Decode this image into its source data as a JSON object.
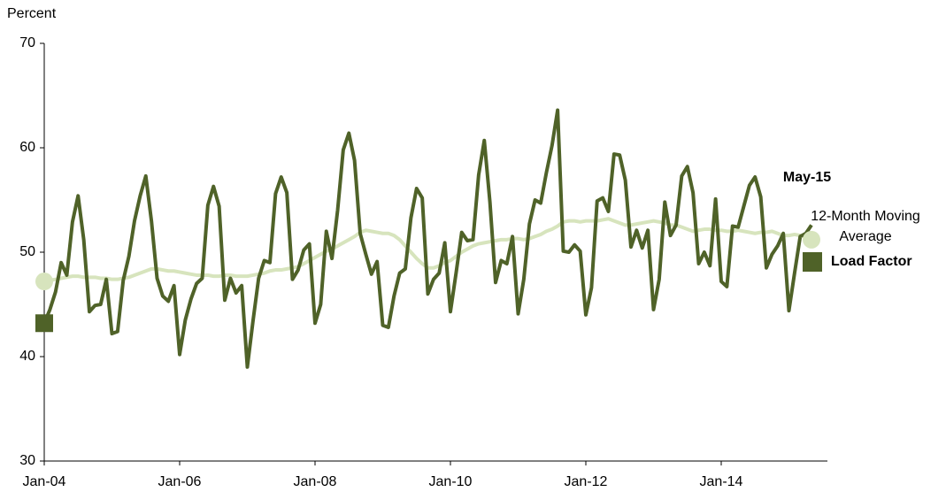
{
  "chart_data": {
    "type": "line",
    "y_label": "Percent",
    "annotation": "May-15",
    "categories": [
      "Jan-04",
      null,
      null,
      null,
      null,
      null,
      null,
      null,
      null,
      null,
      null,
      null,
      null,
      null,
      null,
      null,
      null,
      null,
      null,
      null,
      null,
      null,
      null,
      null,
      "Jan-06",
      null,
      null,
      null,
      null,
      null,
      null,
      null,
      null,
      null,
      null,
      null,
      null,
      null,
      null,
      null,
      null,
      null,
      null,
      null,
      null,
      null,
      null,
      null,
      "Jan-08",
      null,
      null,
      null,
      null,
      null,
      null,
      null,
      null,
      null,
      null,
      null,
      null,
      null,
      null,
      null,
      null,
      null,
      null,
      null,
      null,
      null,
      null,
      null,
      "Jan-10",
      null,
      null,
      null,
      null,
      null,
      null,
      null,
      null,
      null,
      null,
      null,
      null,
      null,
      null,
      null,
      null,
      null,
      null,
      null,
      null,
      null,
      null,
      null,
      "Jan-12",
      null,
      null,
      null,
      null,
      null,
      null,
      null,
      null,
      null,
      null,
      null,
      null,
      null,
      null,
      null,
      null,
      null,
      null,
      null,
      null,
      null,
      null,
      null,
      "Jan-14",
      null,
      null,
      null,
      null,
      null,
      null,
      null,
      null,
      null,
      null,
      null,
      null,
      null,
      null,
      null,
      null
    ],
    "series": [
      {
        "name": "12-Month Moving Average",
        "color": "#d7e4bd",
        "marker": "circle",
        "values": [
          47.2,
          47.3,
          47.4,
          47.5,
          47.6,
          47.7,
          47.7,
          47.6,
          47.6,
          47.6,
          47.5,
          47.5,
          47.4,
          47.4,
          47.5,
          47.6,
          47.8,
          48.0,
          48.2,
          48.4,
          48.4,
          48.3,
          48.2,
          48.2,
          48.1,
          48.0,
          47.9,
          47.8,
          47.8,
          47.8,
          47.7,
          47.7,
          47.8,
          47.8,
          47.7,
          47.7,
          47.7,
          47.8,
          47.9,
          48.0,
          48.2,
          48.3,
          48.3,
          48.4,
          48.5,
          48.6,
          48.9,
          49.2,
          49.5,
          49.8,
          50.1,
          50.3,
          50.6,
          50.9,
          51.2,
          51.5,
          51.9,
          52.1,
          52.0,
          51.9,
          51.8,
          51.8,
          51.6,
          51.2,
          50.6,
          50.0,
          49.4,
          48.9,
          48.5,
          48.5,
          48.7,
          49.0,
          49.2,
          49.6,
          50.0,
          50.3,
          50.6,
          50.8,
          50.9,
          51.0,
          51.1,
          51.2,
          51.2,
          51.3,
          51.3,
          51.2,
          51.3,
          51.5,
          51.7,
          52.0,
          52.2,
          52.5,
          52.9,
          53.0,
          53.0,
          52.9,
          53.0,
          53.0,
          53.0,
          53.1,
          53.2,
          53.0,
          52.8,
          52.6,
          52.6,
          52.7,
          52.8,
          52.9,
          53.0,
          52.9,
          52.8,
          52.6,
          52.6,
          52.4,
          52.2,
          52.0,
          52.1,
          52.2,
          52.2,
          52.1,
          52.1,
          52.0,
          52.0,
          52.1,
          52.0,
          51.9,
          51.8,
          51.9,
          51.9,
          52.0,
          51.8,
          51.6,
          51.6,
          51.7,
          51.6,
          51.4,
          51.2
        ]
      },
      {
        "name": "Load Factor",
        "color": "#4f6228",
        "marker": "square",
        "values": [
          43.2,
          44.5,
          46.2,
          49.0,
          47.8,
          52.9,
          55.4,
          51.2,
          44.3,
          44.9,
          45.0,
          47.4,
          42.2,
          42.4,
          47.3,
          49.6,
          53.0,
          55.4,
          57.3,
          53.0,
          47.5,
          45.8,
          45.3,
          46.8,
          40.2,
          43.5,
          45.5,
          47.0,
          47.5,
          54.5,
          56.3,
          54.4,
          45.4,
          47.5,
          46.1,
          46.8,
          39.0,
          43.4,
          47.5,
          49.2,
          49.0,
          55.6,
          57.2,
          55.7,
          47.4,
          48.3,
          50.2,
          50.8,
          43.2,
          45.0,
          52.0,
          49.4,
          54.0,
          59.8,
          61.4,
          58.8,
          51.8,
          49.8,
          47.9,
          49.1,
          43.0,
          42.8,
          45.8,
          48.0,
          48.4,
          53.3,
          56.1,
          55.2,
          46.0,
          47.4,
          48.0,
          50.9,
          44.3,
          48.0,
          51.9,
          51.1,
          51.2,
          57.4,
          60.7,
          54.8,
          47.1,
          49.2,
          48.9,
          51.5,
          44.1,
          47.4,
          52.7,
          55.0,
          54.7,
          57.6,
          60.2,
          63.6,
          50.1,
          50.0,
          50.7,
          50.1,
          44.0,
          46.6,
          54.9,
          55.2,
          53.9,
          59.4,
          59.3,
          56.9,
          50.5,
          52.1,
          50.4,
          52.1,
          44.5,
          47.4,
          54.8,
          51.6,
          52.6,
          57.3,
          58.2,
          55.7,
          48.9,
          50.0,
          48.7,
          55.1,
          47.2,
          46.7,
          52.5,
          52.4,
          54.4,
          56.4,
          57.2,
          55.3,
          48.5,
          49.8,
          50.6,
          51.8,
          44.4,
          48.0,
          51.5,
          51.8,
          52.6
        ]
      }
    ],
    "ylim": [
      30,
      70
    ],
    "yticks": [
      30,
      40,
      50,
      60,
      70
    ],
    "grid": false
  }
}
